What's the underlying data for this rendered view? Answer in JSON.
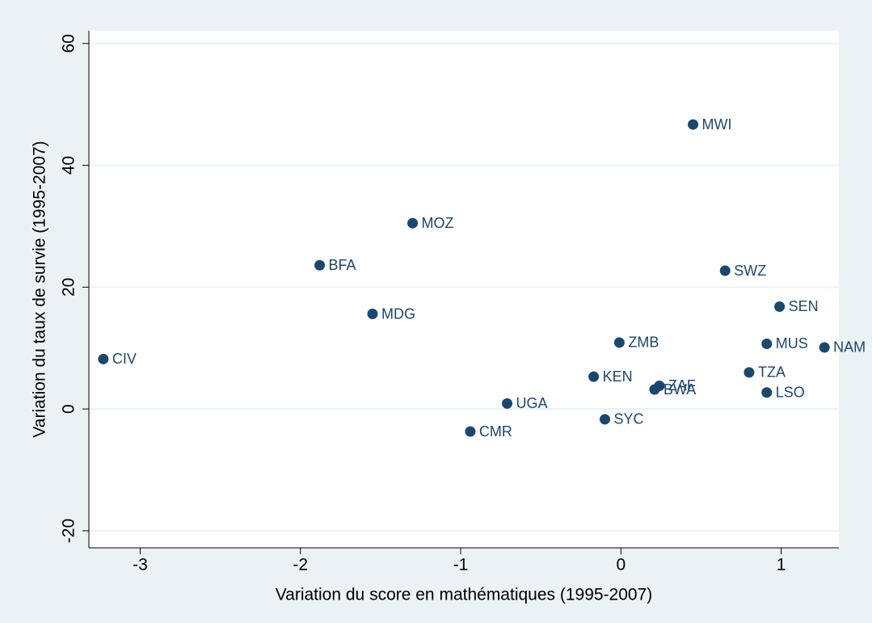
{
  "chart_data": {
    "type": "scatter",
    "x_label": "Variation du score en mathématiques (1995-2007)",
    "y_label": "Variation du taux de survie (1995-2007)",
    "labels": [
      "CIV",
      "BFA",
      "MOZ",
      "MDG",
      "MWI",
      "SWZ",
      "SEN",
      "MUS",
      "NAM",
      "ZMB",
      "TZA",
      "LSO",
      "KEN",
      "ZAF",
      "BWA",
      "UGA",
      "SYC",
      "CMR"
    ],
    "x": [
      -3.23,
      -1.88,
      -1.3,
      -1.55,
      0.45,
      0.65,
      0.99,
      0.91,
      1.27,
      -0.01,
      0.8,
      0.91,
      -0.17,
      0.24,
      0.21,
      -0.71,
      -0.1,
      -0.94
    ],
    "values": [
      8.2,
      23.6,
      30.5,
      15.6,
      46.7,
      22.7,
      16.8,
      10.7,
      10.1,
      10.9,
      6.0,
      2.7,
      5.3,
      3.8,
      3.2,
      0.9,
      -1.7,
      -3.7
    ],
    "color": "#1a476f",
    "xlim": [
      -3.32,
      1.36
    ],
    "xticks": [
      -3,
      -2,
      -1,
      0,
      1
    ],
    "ylim": [
      -22.8,
      62.1
    ],
    "yticks": [
      -20,
      0,
      20,
      40,
      60
    ],
    "grid": true
  }
}
